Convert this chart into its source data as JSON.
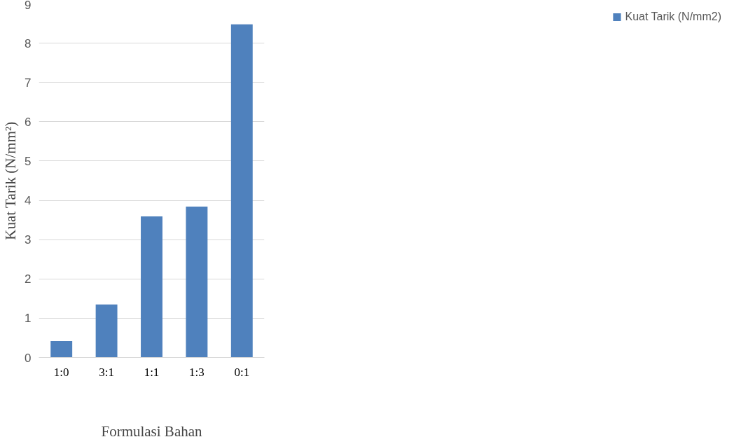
{
  "chart_data": {
    "type": "bar",
    "xlabel": "Formulasi Bahan",
    "ylabel": "Kuat Tarik (N/mm²)",
    "categories": [
      "1:0",
      "3:1",
      "1:1",
      "1:3",
      "0:1"
    ],
    "series": [
      {
        "name": "Kuat Tarik (N/mm2)",
        "color": "#4f81bd",
        "values": [
          0.42,
          1.35,
          3.59,
          3.84,
          8.48
        ]
      }
    ],
    "ylim": [
      0,
      9
    ],
    "yticks": [
      0,
      1,
      2,
      3,
      4,
      5,
      6,
      7,
      8,
      9
    ],
    "grid": "y",
    "legend": "right"
  }
}
